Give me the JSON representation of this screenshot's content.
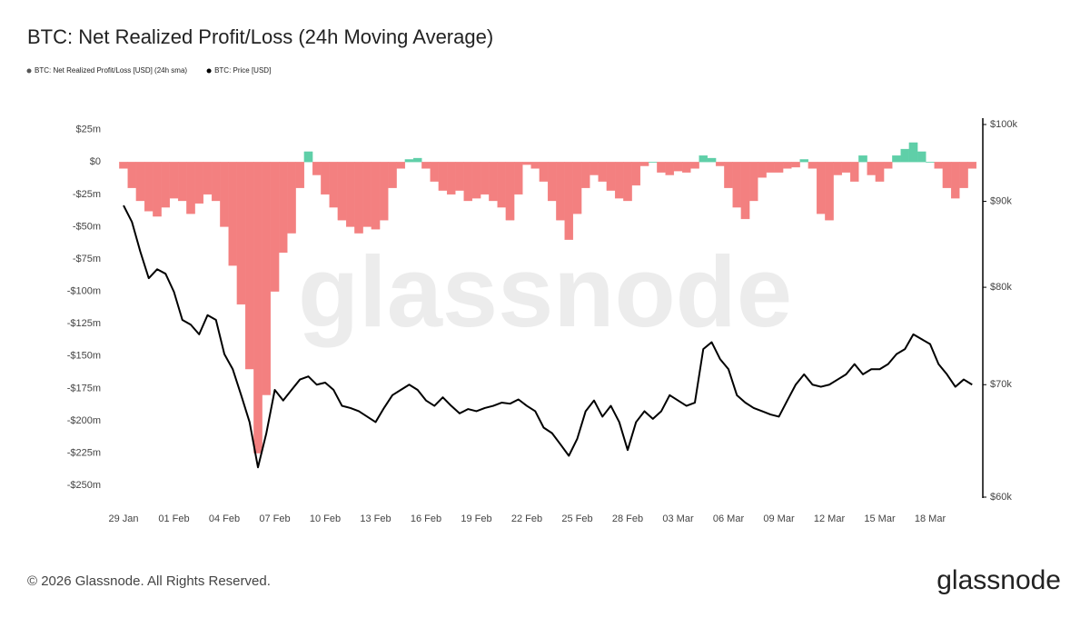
{
  "chart_data": {
    "type": "bar-line",
    "title": "BTC: Net Realized Profit/Loss (24h Moving Average)",
    "watermark": "glassnode",
    "footer": "© 2026 Glassnode. All Rights Reserved.",
    "logo": "glassnode",
    "categories": [
      "29 Jan",
      null,
      null,
      null,
      null,
      null,
      "01 Feb",
      null,
      null,
      null,
      null,
      null,
      "04 Feb",
      null,
      null,
      null,
      null,
      null,
      "07 Feb",
      null,
      null,
      null,
      null,
      null,
      "10 Feb",
      null,
      null,
      null,
      null,
      null,
      "13 Feb",
      null,
      null,
      null,
      null,
      null,
      "16 Feb",
      null,
      null,
      null,
      null,
      null,
      "19 Feb",
      null,
      null,
      null,
      null,
      null,
      "22 Feb",
      null,
      null,
      null,
      null,
      null,
      "25 Feb",
      null,
      null,
      null,
      null,
      null,
      "28 Feb",
      null,
      null,
      null,
      null,
      null,
      "03 Mar",
      null,
      null,
      null,
      null,
      null,
      "06 Mar",
      null,
      null,
      null,
      null,
      null,
      "09 Mar",
      null,
      null,
      null,
      null,
      null,
      "12 Mar",
      null,
      null,
      null,
      null,
      null,
      "15 Mar",
      null,
      null,
      null,
      null,
      null,
      "18 Mar",
      null,
      null,
      null,
      null,
      null
    ],
    "series": [
      {
        "name": "BTC: Net Realized Profit/Loss [USD] (24h sma)",
        "type": "bar",
        "color": "#f38080",
        "positive_color": "#5fcfa8",
        "values": [
          -5,
          -20,
          -30,
          -38,
          -42,
          -35,
          -28,
          -30,
          -40,
          -32,
          -25,
          -30,
          -50,
          -80,
          -110,
          -160,
          -225,
          -180,
          -100,
          -70,
          -55,
          -20,
          8,
          -10,
          -25,
          -35,
          -45,
          -50,
          -55,
          -50,
          -52,
          -45,
          -20,
          -5,
          2,
          3,
          -5,
          -15,
          -22,
          -25,
          -22,
          -30,
          -28,
          -25,
          -30,
          -35,
          -45,
          -25,
          -2,
          -5,
          -15,
          -30,
          -45,
          -60,
          -40,
          -20,
          -10,
          -15,
          -22,
          -28,
          -30,
          -18,
          -3,
          0,
          -8,
          -10,
          -7,
          -8,
          -5,
          5,
          3,
          -3,
          -20,
          -35,
          -44,
          -30,
          -12,
          -8,
          -8,
          -5,
          -4,
          2,
          -5,
          -40,
          -45,
          -10,
          -8,
          -15,
          5,
          -10,
          -15,
          -5,
          5,
          10,
          15,
          8,
          0,
          -5,
          -20,
          -28,
          -20,
          -5
        ]
      },
      {
        "name": "BTC: Price [USD]",
        "type": "line",
        "axis": "y2",
        "color": "#000000",
        "values": [
          89500,
          87500,
          84000,
          81000,
          82000,
          81500,
          79500,
          76500,
          76000,
          75000,
          77000,
          76500,
          73000,
          71500,
          69000,
          66500,
          62500,
          65500,
          69500,
          68500,
          69500,
          70500,
          70800,
          70000,
          70200,
          69500,
          68000,
          67800,
          67500,
          67000,
          66500,
          67800,
          69000,
          69500,
          70000,
          69500,
          68500,
          68000,
          68800,
          68000,
          67300,
          67700,
          67500,
          67800,
          68000,
          68300,
          68200,
          68600,
          68000,
          67500,
          66000,
          65500,
          64500,
          63500,
          65000,
          67500,
          68500,
          67000,
          68000,
          66500,
          64000,
          66500,
          67500,
          66800,
          67500,
          69000,
          68500,
          68000,
          68300,
          73500,
          74200,
          72500,
          71500,
          69000,
          68300,
          67800,
          67500,
          67200,
          67000,
          68500,
          70000,
          71000,
          70000,
          69800,
          70000,
          70500,
          71000,
          72000,
          71000,
          71500,
          71500,
          72000,
          73000,
          73500,
          75000,
          74500,
          74000,
          72000,
          71000,
          69800,
          70500,
          70000
        ]
      }
    ],
    "ylim": [
      -259,
      29
    ],
    "yticks": [
      {
        "value": 25,
        "label": "$25m"
      },
      {
        "value": 0,
        "label": "$0"
      },
      {
        "value": -25,
        "label": "-$25m"
      },
      {
        "value": -50,
        "label": "-$50m"
      },
      {
        "value": -75,
        "label": "-$75m"
      },
      {
        "value": -100,
        "label": "-$100m"
      },
      {
        "value": -125,
        "label": "-$125m"
      },
      {
        "value": -150,
        "label": "-$150m"
      },
      {
        "value": -175,
        "label": "-$175m"
      },
      {
        "value": -200,
        "label": "-$200m"
      },
      {
        "value": -225,
        "label": "-$225m"
      },
      {
        "value": -250,
        "label": "-$250m"
      }
    ],
    "y2lim": [
      60000,
      100000
    ],
    "y2scale": "log",
    "y2ticks": [
      {
        "value": 60000,
        "label": "$60k"
      },
      {
        "value": 70000,
        "label": "$70k"
      },
      {
        "value": 80000,
        "label": "$80k"
      },
      {
        "value": 90000,
        "label": "$90k"
      },
      {
        "value": 100000,
        "label": "$100k"
      }
    ],
    "grid": false
  }
}
